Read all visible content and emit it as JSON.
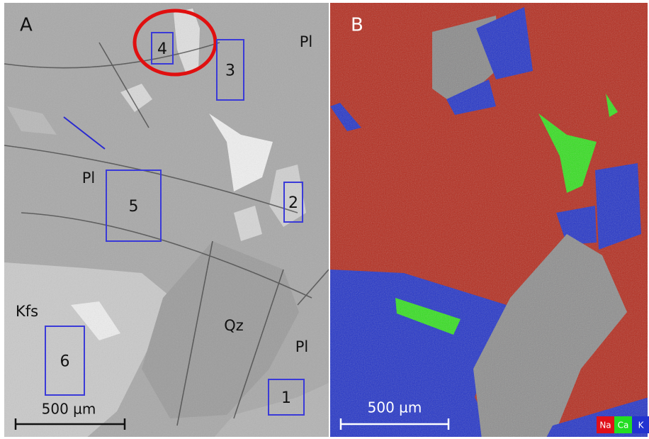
{
  "panels": [
    {
      "label": "A",
      "labels": [
        "Pl",
        "Pl",
        "Pl",
        "Kfs",
        "Qz"
      ],
      "regions": [
        "1",
        "2",
        "3",
        "4",
        "5",
        "6"
      ],
      "scale_bar": "500 µm"
    },
    {
      "label": "B",
      "scale_bar": "500 µm",
      "legend": [
        "Na",
        "Ca",
        "K"
      ]
    }
  ]
}
